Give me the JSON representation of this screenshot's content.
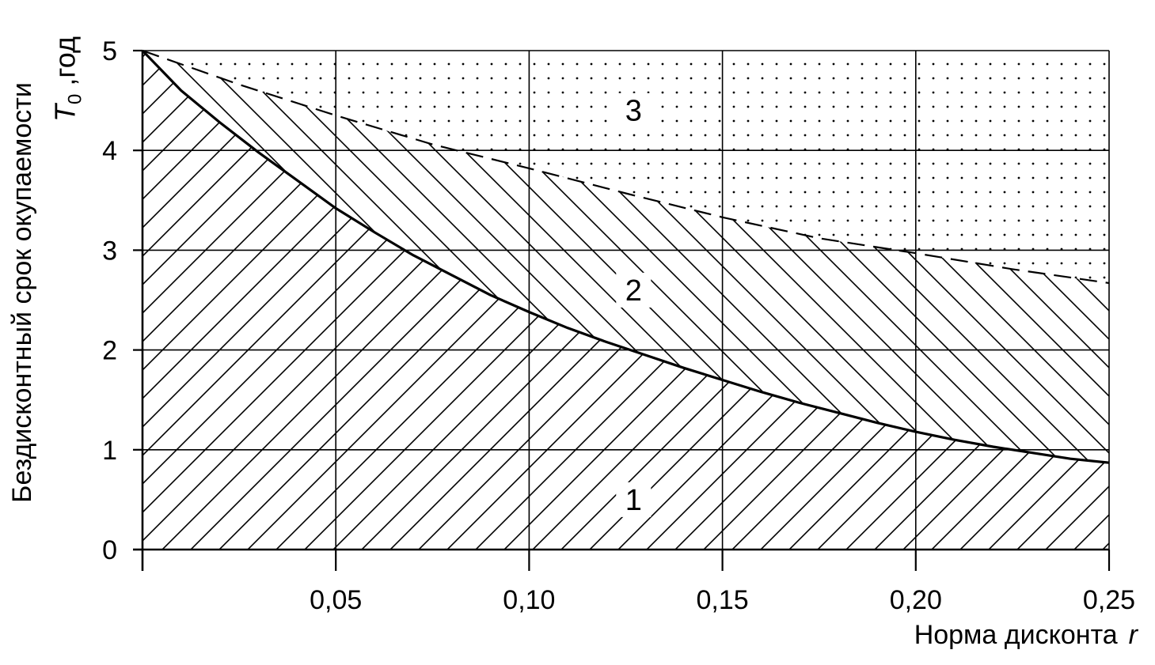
{
  "chart_data": {
    "type": "area",
    "title": "",
    "xlabel": "Норма дисконта",
    "xsymbol": "r",
    "ylabel": "Бездисконтный срок окупаемости",
    "ylabel_symbol": "T",
    "ylabel_subscript": "0",
    "ylabel_unit": ",год",
    "xlim": [
      0,
      0.25
    ],
    "ylim": [
      0,
      5
    ],
    "x_ticks": [
      0.05,
      0.1,
      0.15,
      0.2,
      0.25
    ],
    "x_tick_labels": [
      "0,05",
      "0,10",
      "0,15",
      "0,20",
      "0,25"
    ],
    "y_ticks": [
      0,
      1,
      2,
      3,
      4,
      5
    ],
    "y_tick_labels": [
      "0",
      "1",
      "2",
      "3",
      "4",
      "5"
    ],
    "grid": true,
    "series": [
      {
        "style": "solid",
        "x": [
          0,
          0.01,
          0.02,
          0.03,
          0.04,
          0.05,
          0.06,
          0.07,
          0.08,
          0.09,
          0.1,
          0.11,
          0.12,
          0.13,
          0.14,
          0.15,
          0.16,
          0.17,
          0.18,
          0.19,
          0.2,
          0.21,
          0.22,
          0.23,
          0.24,
          0.25
        ],
        "y": [
          5.0,
          4.6,
          4.28,
          3.98,
          3.7,
          3.42,
          3.18,
          2.95,
          2.75,
          2.55,
          2.38,
          2.22,
          2.08,
          1.95,
          1.82,
          1.7,
          1.58,
          1.47,
          1.37,
          1.27,
          1.18,
          1.1,
          1.03,
          0.97,
          0.91,
          0.87
        ]
      },
      {
        "style": "dashed",
        "x": [
          0,
          0.025,
          0.05,
          0.075,
          0.1,
          0.125,
          0.15,
          0.175,
          0.2,
          0.225,
          0.25
        ],
        "y": [
          5.0,
          4.66,
          4.35,
          4.06,
          3.82,
          3.57,
          3.33,
          3.12,
          2.97,
          2.81,
          2.67
        ]
      }
    ],
    "regions": [
      {
        "label": "1",
        "fill": "hatch-right",
        "x": 0.127,
        "y": 0.5
      },
      {
        "label": "2",
        "fill": "hatch-left",
        "x": 0.127,
        "y": 2.6
      },
      {
        "label": "3",
        "fill": "dots",
        "x": 0.127,
        "y": 4.4
      }
    ]
  }
}
